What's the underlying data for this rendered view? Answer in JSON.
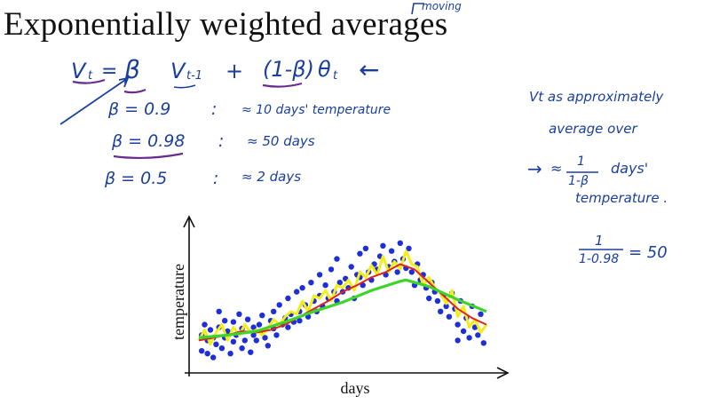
{
  "slide": {
    "title": "Exponentially weighted averages",
    "title_note": "moving"
  },
  "handwriting": {
    "formula": {
      "lhs": "V",
      "lhs_sub": "t",
      "equals": "=",
      "beta": "β",
      "v_prev": "V",
      "v_prev_sub": "t-1",
      "plus": "+",
      "one_minus_beta": "(1-β)",
      "theta": "θ",
      "theta_sub": "t",
      "arrow": "←"
    },
    "examples": [
      {
        "beta": "β = 0.9",
        "colon": ":",
        "result": "≈ 10 days' temperature"
      },
      {
        "beta": "β = 0.98",
        "colon": ":",
        "result": "≈ 50 days"
      },
      {
        "beta": "β = 0.5",
        "colon": ":",
        "result": "≈ 2 days"
      }
    ],
    "side_note": {
      "line1": "Vt as approximately",
      "line2": "average over",
      "arrow": "→",
      "approx": "≈",
      "frac_num": "1",
      "frac_den": "1-β",
      "days": "days'",
      "line4": "temperature ."
    },
    "calc": {
      "num": "1",
      "den": "1-0.98",
      "result": "= 50"
    }
  },
  "colors": {
    "ink_blue": "#1a3f9e",
    "ink_purple": "#6a2d8f",
    "data_points": "#1f2fd6",
    "beta_0_5": "#f4ee18",
    "beta_0_9": "#e0251f",
    "beta_0_98": "#3fd42c"
  },
  "chart_data": {
    "type": "scatter",
    "title": "",
    "xlabel": "days",
    "ylabel": "temperature",
    "xlim": [
      0,
      100
    ],
    "ylim": [
      0,
      100
    ],
    "ticks_shown": false,
    "points": {
      "name": "daily temperature θt",
      "x": [
        1,
        1,
        2,
        3,
        3,
        4,
        5,
        5,
        6,
        7,
        7,
        8,
        9,
        9,
        10,
        11,
        12,
        12,
        13,
        14,
        15,
        15,
        16,
        17,
        18,
        19,
        19,
        20,
        21,
        22,
        22,
        23,
        24,
        25,
        26,
        26,
        27,
        28,
        29,
        30,
        31,
        31,
        32,
        33,
        34,
        35,
        35,
        36,
        37,
        38,
        39,
        40,
        41,
        42,
        42,
        43,
        44,
        45,
        46,
        47,
        48,
        48,
        49,
        50,
        51,
        52,
        53,
        54,
        55,
        56,
        56,
        57,
        58,
        59,
        60,
        61,
        62,
        63,
        64,
        65,
        66,
        67,
        68,
        69,
        70,
        71,
        72,
        73,
        74,
        75,
        76,
        77,
        78,
        79,
        80,
        81,
        82,
        83,
        84,
        85,
        86,
        87,
        88,
        89,
        90,
        90,
        91,
        92,
        93,
        94,
        95,
        96,
        97,
        98,
        99
      ],
      "y": [
        22,
        10,
        30,
        8,
        18,
        26,
        5,
        20,
        15,
        28,
        40,
        12,
        33,
        20,
        25,
        8,
        32,
        17,
        22,
        38,
        12,
        27,
        18,
        34,
        9,
        28,
        22,
        18,
        30,
        24,
        37,
        20,
        14,
        33,
        40,
        27,
        22,
        45,
        30,
        35,
        28,
        50,
        38,
        32,
        55,
        40,
        33,
        58,
        45,
        36,
        62,
        48,
        40,
        68,
        52,
        44,
        60,
        50,
        72,
        55,
        48,
        80,
        62,
        55,
        65,
        58,
        74,
        50,
        68,
        66,
        84,
        60,
        88,
        70,
        64,
        76,
        72,
        82,
        90,
        68,
        74,
        86,
        78,
        70,
        92,
        80,
        73,
        88,
        70,
        60,
        76,
        64,
        68,
        58,
        50,
        62,
        55,
        48,
        40,
        52,
        44,
        36,
        54,
        42,
        30,
        18,
        48,
        25,
        35,
        20,
        44,
        28,
        22,
        38,
        16
      ]
    },
    "series": [
      {
        "name": "β = 0.5",
        "style": "yellow",
        "x": [
          0,
          2,
          4,
          6,
          8,
          10,
          12,
          14,
          16,
          18,
          20,
          22,
          24,
          26,
          28,
          30,
          32,
          34,
          36,
          38,
          40,
          42,
          44,
          46,
          48,
          50,
          52,
          54,
          56,
          58,
          60,
          62,
          64,
          66,
          68,
          70,
          72,
          74,
          76,
          78,
          80,
          82,
          84,
          86,
          88,
          90,
          92,
          94,
          96,
          98,
          100
        ],
        "y": [
          18,
          26,
          15,
          24,
          30,
          18,
          28,
          22,
          30,
          24,
          26,
          22,
          27,
          34,
          30,
          36,
          40,
          38,
          48,
          40,
          52,
          50,
          56,
          48,
          60,
          58,
          64,
          56,
          70,
          66,
          75,
          68,
          82,
          70,
          78,
          72,
          86,
          76,
          74,
          60,
          66,
          58,
          54,
          46,
          56,
          36,
          44,
          28,
          34,
          24,
          30
        ]
      },
      {
        "name": "β = 0.9",
        "style": "red",
        "x": [
          0,
          5,
          10,
          15,
          20,
          25,
          30,
          35,
          40,
          45,
          50,
          55,
          60,
          65,
          70,
          75,
          80,
          85,
          90,
          95,
          100
        ],
        "y": [
          18,
          20,
          22,
          25,
          24,
          26,
          30,
          36,
          42,
          48,
          55,
          60,
          66,
          70,
          76,
          72,
          62,
          52,
          42,
          35,
          30
        ]
      },
      {
        "name": "β = 0.98",
        "style": "green",
        "x": [
          0,
          10,
          20,
          30,
          40,
          50,
          60,
          70,
          72,
          80,
          90,
          100
        ],
        "y": [
          20,
          22,
          25,
          32,
          40,
          47,
          56,
          63,
          64,
          59,
          49,
          40
        ]
      }
    ]
  }
}
